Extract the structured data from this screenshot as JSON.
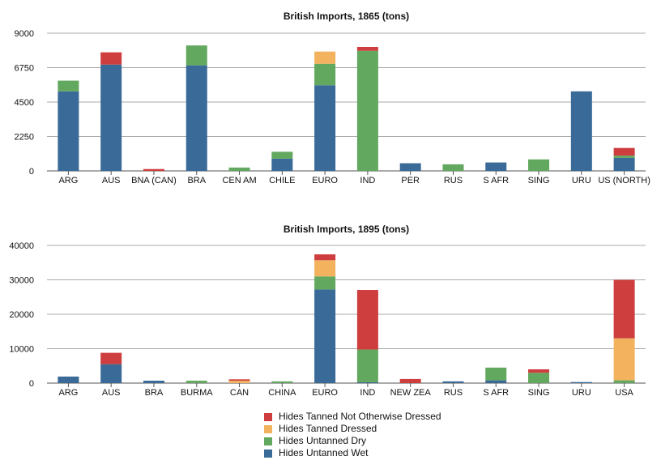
{
  "legend": [
    {
      "name": "Hides Tanned Not Otherwise Dressed",
      "color": "#cf3e3e"
    },
    {
      "name": "Hides Tanned Dressed",
      "color": "#f2b25e"
    },
    {
      "name": "Hides Untanned Dry",
      "color": "#63a85f"
    },
    {
      "name": "Hides Untanned Wet",
      "color": "#3a6a98"
    }
  ],
  "chart_data": [
    {
      "type": "bar",
      "stacked": true,
      "title": "British Imports, 1865 (tons)",
      "xlabel": "",
      "ylabel": "",
      "ylim": [
        0,
        9000
      ],
      "yticks": [
        0,
        2250,
        4500,
        6750,
        9000
      ],
      "categories": [
        "ARG",
        "AUS",
        "BNA (CAN)",
        "BRA",
        "CEN AM",
        "CHILE",
        "EURO",
        "IND",
        "PER",
        "RUS",
        "S AFR",
        "SING",
        "URU",
        "US (NORTH)"
      ],
      "series": [
        {
          "name": "Hides Untanned Wet",
          "color": "#3a6a98",
          "values": [
            5200,
            6950,
            0,
            6900,
            0,
            800,
            5600,
            0,
            500,
            0,
            550,
            0,
            5200,
            850
          ]
        },
        {
          "name": "Hides Untanned Dry",
          "color": "#63a85f",
          "values": [
            700,
            0,
            0,
            1300,
            220,
            450,
            1400,
            7850,
            0,
            430,
            0,
            750,
            0,
            150
          ]
        },
        {
          "name": "Hides Tanned Dressed",
          "color": "#f2b25e",
          "values": [
            0,
            0,
            0,
            0,
            0,
            0,
            800,
            0,
            0,
            0,
            0,
            0,
            0,
            0
          ]
        },
        {
          "name": "Hides Tanned Not Otherwise Dressed",
          "color": "#cf3e3e",
          "values": [
            0,
            800,
            120,
            0,
            0,
            0,
            0,
            250,
            0,
            0,
            0,
            0,
            0,
            500
          ]
        }
      ]
    },
    {
      "type": "bar",
      "stacked": true,
      "title": "British Imports, 1895 (tons)",
      "xlabel": "",
      "ylabel": "",
      "ylim": [
        0,
        40000
      ],
      "yticks": [
        0,
        10000,
        20000,
        30000,
        40000
      ],
      "categories": [
        "ARG",
        "AUS",
        "BRA",
        "BURMA",
        "CAN",
        "CHINA",
        "EURO",
        "IND",
        "NEW ZEA",
        "RUS",
        "S AFR",
        "SING",
        "URU",
        "USA"
      ],
      "series": [
        {
          "name": "Hides Untanned Wet",
          "color": "#3a6a98",
          "values": [
            1900,
            5500,
            700,
            0,
            0,
            0,
            27200,
            250,
            0,
            500,
            800,
            0,
            300,
            0
          ]
        },
        {
          "name": "Hides Untanned Dry",
          "color": "#63a85f",
          "values": [
            0,
            0,
            0,
            700,
            0,
            500,
            3800,
            9500,
            0,
            0,
            3700,
            3000,
            0,
            800
          ]
        },
        {
          "name": "Hides Tanned Dressed",
          "color": "#f2b25e",
          "values": [
            0,
            0,
            0,
            0,
            700,
            0,
            4700,
            0,
            0,
            0,
            0,
            0,
            0,
            12200
          ]
        },
        {
          "name": "Hides Tanned Not Otherwise Dressed",
          "color": "#cf3e3e",
          "values": [
            0,
            3300,
            0,
            0,
            400,
            0,
            1700,
            17300,
            1200,
            0,
            0,
            1000,
            0,
            17000
          ]
        }
      ]
    }
  ]
}
